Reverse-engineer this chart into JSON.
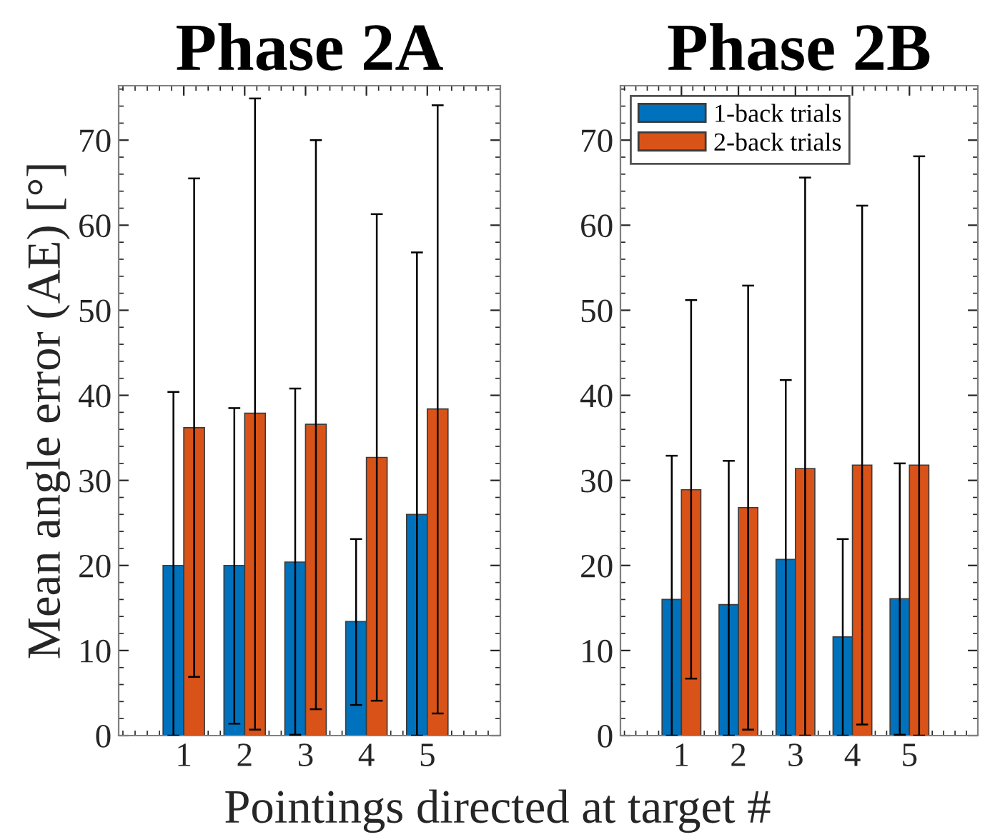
{
  "chart_data": [
    {
      "type": "bar",
      "title": "Phase 2A",
      "xlabel": "Pointings directed at target #",
      "ylabel": "Mean angle error (AE) [°]",
      "x": [
        1,
        2,
        3,
        4,
        5
      ],
      "xlim": [
        -0.07,
        6.2
      ],
      "xticks": [
        1,
        2,
        3,
        4,
        5
      ],
      "ylim": [
        0,
        76.4
      ],
      "yticks": [
        0,
        10,
        20,
        30,
        40,
        50,
        60,
        70
      ],
      "grid": false,
      "legend": false,
      "series": [
        {
          "color": "#0072bd",
          "values": [
            20.0,
            20.0,
            20.4,
            13.4,
            26.0
          ],
          "errors": [
            [
              0,
              40.4
            ],
            [
              1.4,
              38.5
            ],
            [
              0.1,
              40.8
            ],
            [
              3.6,
              23.1
            ],
            [
              0,
              56.8
            ]
          ]
        },
        {
          "color": "#d95319",
          "values": [
            36.2,
            37.9,
            36.6,
            32.7,
            38.4
          ],
          "errors": [
            [
              6.9,
              65.5
            ],
            [
              0.7,
              74.9
            ],
            [
              3.1,
              70.0
            ],
            [
              4.1,
              61.3
            ],
            [
              2.6,
              74.1
            ]
          ]
        }
      ]
    },
    {
      "type": "bar",
      "title": "Phase 2B",
      "x": [
        1,
        2,
        3,
        4,
        5
      ],
      "xlim": [
        -0.07,
        6.2
      ],
      "xticks": [
        1,
        2,
        3,
        4,
        5
      ],
      "ylim": [
        0,
        76.4
      ],
      "yticks": [
        0,
        10,
        20,
        30,
        40,
        50,
        60,
        70
      ],
      "grid": false,
      "legend": "top left",
      "series": [
        {
          "name": "1-back trials",
          "color": "#0072bd",
          "values": [
            16.0,
            15.4,
            20.7,
            11.6,
            16.1
          ],
          "errors": [
            [
              0,
              32.9
            ],
            [
              0,
              32.3
            ],
            [
              0,
              41.8
            ],
            [
              0,
              23.1
            ],
            [
              0.1,
              32.0
            ]
          ]
        },
        {
          "name": "2-back trials",
          "color": "#d95319",
          "values": [
            28.9,
            26.8,
            31.4,
            31.8,
            31.8
          ],
          "errors": [
            [
              6.7,
              51.2
            ],
            [
              0.7,
              52.9
            ],
            [
              0,
              65.6
            ],
            [
              1.3,
              62.3
            ],
            [
              0,
              68.1
            ]
          ]
        }
      ]
    }
  ]
}
